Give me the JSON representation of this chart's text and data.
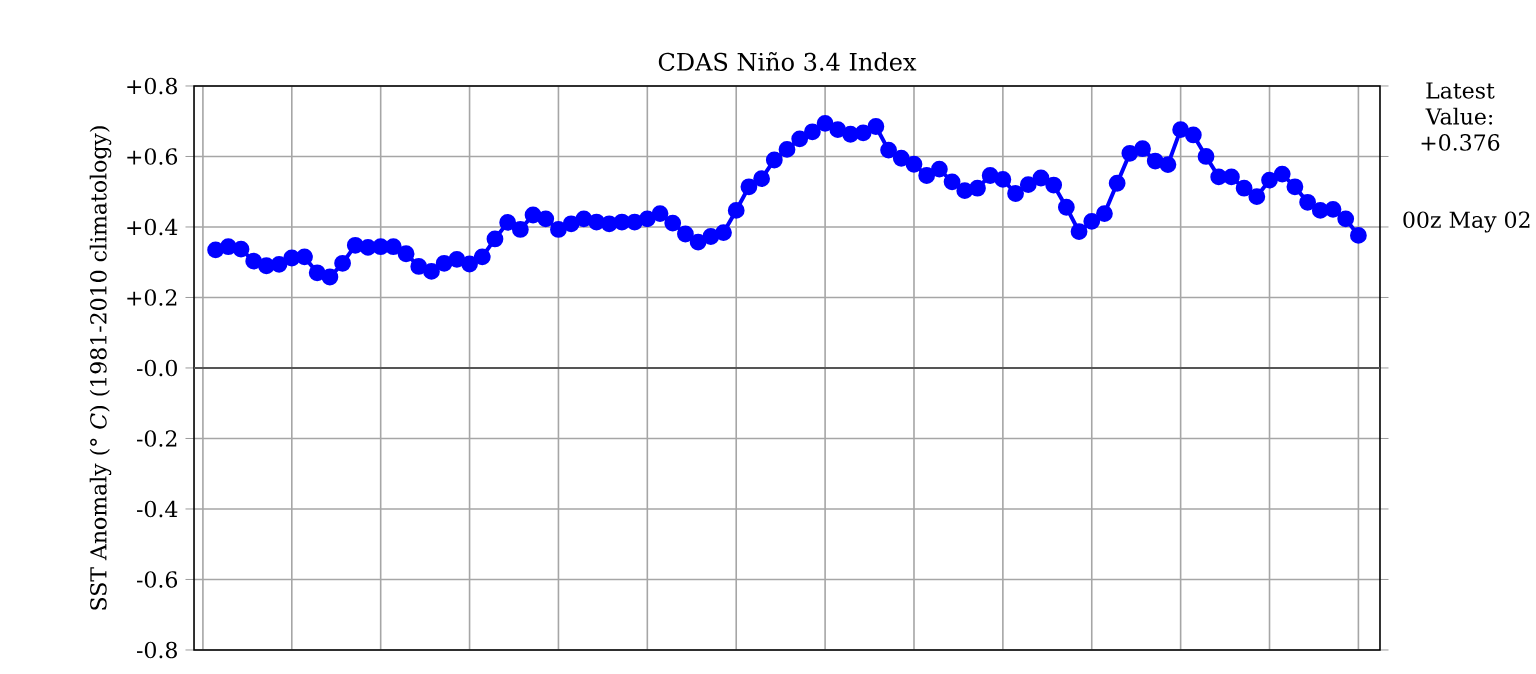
{
  "chart_data": {
    "type": "line",
    "title": "CDAS Niño 3.4 Index",
    "ylabel": "SST Anomaly (° *C*) (1981-2010 climatology)",
    "annotations": [
      "Latest Value: +0.376",
      "00z May 02"
    ],
    "categories": [
      null,
      null,
      null,
      null,
      null,
      null,
      null,
      null,
      null,
      null,
      null,
      null,
      null,
      null,
      null,
      null,
      null,
      null,
      null,
      null,
      null,
      null,
      null,
      null,
      null,
      null,
      null,
      null,
      null,
      null,
      null,
      null,
      null,
      null,
      null,
      null,
      null,
      null,
      null,
      null,
      null,
      null,
      null,
      null,
      null,
      null,
      null,
      null,
      null,
      null,
      null,
      null,
      null,
      null,
      null,
      null,
      null,
      null,
      null,
      null,
      null,
      null,
      null,
      null,
      null,
      null,
      null,
      null,
      null,
      null,
      null,
      null,
      null,
      null,
      null,
      null,
      null,
      null,
      null,
      null,
      null,
      null,
      null,
      null,
      null,
      null,
      null,
      null,
      null,
      null,
      null
    ],
    "series": [
      {
        "color": "#0000ff",
        "values": [
          0.335,
          0.344,
          0.337,
          0.303,
          0.29,
          0.294,
          0.312,
          0.315,
          0.27,
          0.258,
          0.297,
          0.348,
          0.342,
          0.344,
          0.344,
          0.324,
          0.288,
          0.274,
          0.297,
          0.308,
          0.295,
          0.315,
          0.366,
          0.413,
          0.393,
          0.434,
          0.423,
          0.393,
          0.409,
          0.423,
          0.414,
          0.409,
          0.414,
          0.414,
          0.423,
          0.438,
          0.411,
          0.38,
          0.357,
          0.373,
          0.384,
          0.447,
          0.514,
          0.537,
          0.59,
          0.62,
          0.65,
          0.67,
          0.694,
          0.676,
          0.663,
          0.667,
          0.685,
          0.618,
          0.595,
          0.578,
          0.546,
          0.564,
          0.528,
          0.503,
          0.51,
          0.546,
          0.535,
          0.495,
          0.52,
          0.539,
          0.519,
          0.456,
          0.387,
          0.416,
          0.438,
          0.524,
          0.609,
          0.622,
          0.587,
          0.577,
          0.676,
          0.661,
          0.6,
          0.542,
          0.542,
          0.51,
          0.486,
          0.533,
          0.55,
          0.514,
          0.47,
          0.447,
          0.45,
          0.423,
          0.376
        ]
      }
    ],
    "ylim": [
      -0.8,
      0.8
    ],
    "yticks": [
      {
        "value": 0.8,
        "label": "+0.8"
      },
      {
        "value": 0.6,
        "label": "+0.6"
      },
      {
        "value": 0.4,
        "label": "+0.4"
      },
      {
        "value": 0.2,
        "label": "+0.2"
      },
      {
        "value": 0,
        "label": "-0.0"
      },
      {
        "value": -0.2,
        "label": "-0.2"
      },
      {
        "value": -0.4,
        "label": "-0.4"
      },
      {
        "value": -0.6,
        "label": "-0.6"
      },
      {
        "value": -0.8,
        "label": "-0.8"
      }
    ],
    "ref_lines": [
      {
        "axis": "y",
        "value": 0,
        "color": "#555555"
      }
    ],
    "grid": true,
    "marker": "circle",
    "line_style": "solid",
    "tick_labels": "y"
  }
}
